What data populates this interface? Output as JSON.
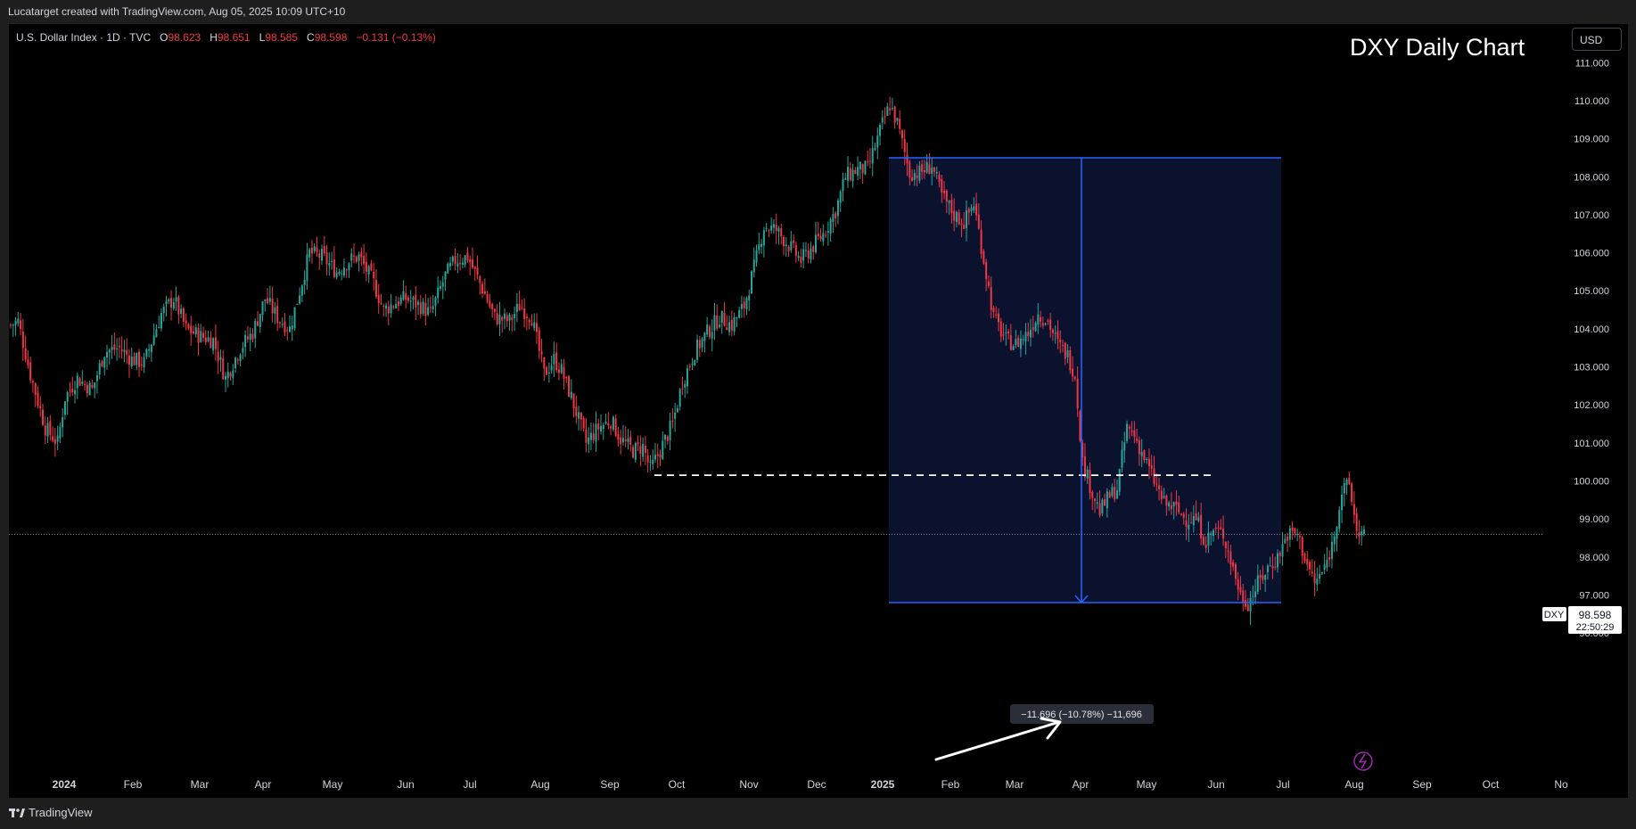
{
  "header": {
    "attribution": "Lucatarget created with TradingView.com, Aug 05, 2025 10:09 UTC+10"
  },
  "legend": {
    "symbol": "U.S. Dollar Index · 1D · TVC",
    "open_label": "O",
    "open": "98.623",
    "high_label": "H",
    "high": "98.651",
    "low_label": "L",
    "low": "98.585",
    "close_label": "C",
    "close": "98.598",
    "change": "−0.131 (−0.13%)"
  },
  "title": "DXY Daily Chart",
  "currency_button": "USD",
  "price_tag": {
    "symbol": "DXY",
    "price": "98.598",
    "countdown": "22:50:29"
  },
  "measure_label": "−11.696 (−10.78%) −11,696",
  "footer": {
    "brand": "TradingView"
  },
  "colors": {
    "up": "#26a69a",
    "down": "#f23645",
    "measure_box": "#0b1330",
    "measure_line": "#2962ff"
  },
  "chart_data": {
    "type": "candlestick",
    "title": "DXY Daily Chart",
    "ylim": [
      95.3,
      111.3
    ],
    "y_ticks": [
      "111.000",
      "110.000",
      "109.000",
      "108.000",
      "107.000",
      "106.000",
      "105.000",
      "104.000",
      "103.000",
      "102.000",
      "101.000",
      "100.000",
      "99.000",
      "98.000",
      "97.000",
      "96.000"
    ],
    "x_ticks": [
      "2024",
      "Feb",
      "Mar",
      "Apr",
      "May",
      "Jun",
      "Jul",
      "Aug",
      "Sep",
      "Oct",
      "Nov",
      "Dec",
      "2025",
      "Feb",
      "Mar",
      "Apr",
      "May",
      "Jun",
      "Jul",
      "Aug",
      "Sep",
      "Oct",
      "No"
    ],
    "x_ticks_bold": [
      "2024",
      "2025"
    ],
    "series": [
      {
        "values": [
          [
            0,
            104.1
          ],
          [
            3,
            104.2
          ],
          [
            8,
            102.8
          ],
          [
            14,
            101.4
          ],
          [
            19,
            101.0
          ],
          [
            22,
            102.2
          ],
          [
            27,
            102.7
          ],
          [
            33,
            102.4
          ],
          [
            38,
            103.4
          ],
          [
            44,
            103.5
          ],
          [
            49,
            103.2
          ],
          [
            54,
            103.1
          ],
          [
            61,
            104.4
          ],
          [
            66,
            104.8
          ],
          [
            71,
            104.0
          ],
          [
            77,
            103.8
          ],
          [
            82,
            103.7
          ],
          [
            87,
            102.7
          ],
          [
            93,
            103.5
          ],
          [
            98,
            103.9
          ],
          [
            103,
            104.8
          ],
          [
            108,
            104.3
          ],
          [
            113,
            104.0
          ],
          [
            117,
            105.0
          ],
          [
            121,
            106.0
          ],
          [
            126,
            105.9
          ],
          [
            132,
            105.5
          ],
          [
            137,
            105.8
          ],
          [
            141,
            105.9
          ],
          [
            147,
            105.2
          ],
          [
            151,
            104.5
          ],
          [
            156,
            104.7
          ],
          [
            160,
            104.8
          ],
          [
            166,
            104.6
          ],
          [
            170,
            104.4
          ],
          [
            176,
            105.4
          ],
          [
            180,
            105.8
          ],
          [
            185,
            105.9
          ],
          [
            190,
            105.2
          ],
          [
            196,
            104.3
          ],
          [
            202,
            104.2
          ],
          [
            206,
            104.6
          ],
          [
            211,
            104.3
          ],
          [
            216,
            102.8
          ],
          [
            220,
            103.2
          ],
          [
            223,
            102.9
          ],
          [
            227,
            102.2
          ],
          [
            233,
            101.0
          ],
          [
            238,
            101.4
          ],
          [
            243,
            101.6
          ],
          [
            247,
            101.1
          ],
          [
            252,
            100.8
          ],
          [
            256,
            100.9
          ],
          [
            259,
            100.3
          ],
          [
            263,
            100.8
          ],
          [
            268,
            101.5
          ],
          [
            272,
            102.6
          ],
          [
            277,
            103.4
          ],
          [
            282,
            103.9
          ],
          [
            287,
            104.3
          ],
          [
            292,
            104.1
          ],
          [
            297,
            104.6
          ],
          [
            301,
            105.6
          ],
          [
            305,
            106.7
          ],
          [
            310,
            106.6
          ],
          [
            315,
            106.2
          ],
          [
            320,
            105.8
          ],
          [
            324,
            106.1
          ],
          [
            329,
            106.5
          ],
          [
            334,
            107.1
          ],
          [
            338,
            108.0
          ],
          [
            343,
            108.2
          ],
          [
            347,
            108.2
          ],
          [
            352,
            109.2
          ],
          [
            356,
            109.9
          ],
          [
            359,
            109.4
          ],
          [
            364,
            108.1
          ],
          [
            368,
            108.1
          ],
          [
            373,
            108.3
          ],
          [
            377,
            107.5
          ],
          [
            382,
            107.0
          ],
          [
            386,
            106.8
          ],
          [
            390,
            107.3
          ],
          [
            393,
            106.2
          ],
          [
            398,
            104.3
          ],
          [
            403,
            103.7
          ],
          [
            407,
            103.6
          ],
          [
            412,
            103.9
          ],
          [
            416,
            104.4
          ],
          [
            420,
            104.2
          ],
          [
            424,
            103.6
          ],
          [
            428,
            103.3
          ],
          [
            431,
            102.8
          ],
          [
            434,
            100.5
          ],
          [
            438,
            99.7
          ],
          [
            441,
            99.2
          ],
          [
            445,
            99.6
          ],
          [
            448,
            99.8
          ],
          [
            452,
            101.4
          ],
          [
            455,
            101.2
          ],
          [
            459,
            100.6
          ],
          [
            463,
            100.0
          ],
          [
            467,
            99.4
          ],
          [
            471,
            99.3
          ],
          [
            476,
            99.0
          ],
          [
            480,
            99.0
          ],
          [
            484,
            98.4
          ],
          [
            487,
            98.7
          ],
          [
            491,
            98.6
          ],
          [
            495,
            97.7
          ],
          [
            498,
            97.0
          ],
          [
            501,
            96.8
          ],
          [
            505,
            97.3
          ],
          [
            509,
            97.7
          ],
          [
            513,
            98.0
          ],
          [
            517,
            98.6
          ],
          [
            521,
            98.6
          ],
          [
            525,
            97.8
          ],
          [
            528,
            97.3
          ],
          [
            532,
            97.7
          ],
          [
            535,
            98.3
          ],
          [
            539,
            99.7
          ],
          [
            542,
            99.9
          ],
          [
            545,
            98.7
          ],
          [
            548,
            98.6
          ]
        ]
      }
    ],
    "annotations": {
      "dashed_support": 100.15,
      "measure_range": [
        108.5,
        96.8
      ],
      "measure_text": "−11.696 (−10.78%) −11,696",
      "last_price": 98.598
    }
  }
}
